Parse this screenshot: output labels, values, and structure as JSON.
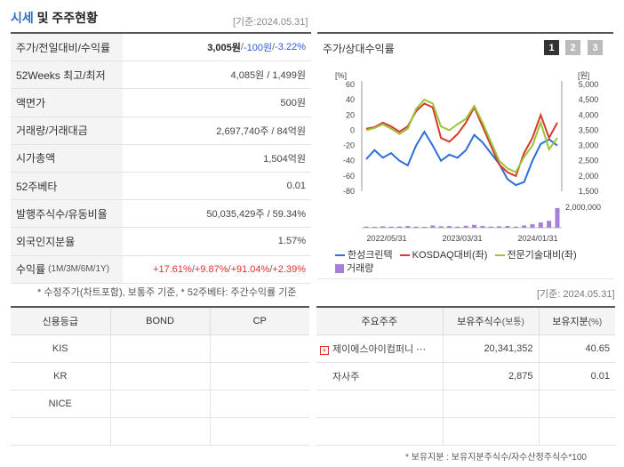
{
  "header": {
    "title_blue": "시세",
    "title_rest": " 및 주주현황",
    "date": "[기준:2024.05.31]"
  },
  "price_table": {
    "rows": [
      {
        "key": "주가/전일대비/수익률"
      },
      {
        "key": "52Weeks 최고/최저",
        "value": "4,085원 / 1,499원"
      },
      {
        "key": "액면가",
        "value": "500원"
      },
      {
        "key": "거래량/거래대금",
        "value": "2,697,740주 / 84억원"
      },
      {
        "key": "시가총액",
        "value": "1,504억원"
      },
      {
        "key": "52주베타",
        "value": "0.01"
      },
      {
        "key": "발행주식수/유동비율",
        "value": "50,035,429주 / 59.34%"
      },
      {
        "key": "외국인지분율",
        "value": "1.57%"
      },
      {
        "key": "수익률",
        "key_sub": "(1M/3M/6M/1Y)"
      }
    ],
    "price": "3,005원",
    "sep1": " / ",
    "change": "-100원",
    "sep2": " / ",
    "rate": "-3.22%",
    "returns": [
      "+17.61%",
      "+9.87%",
      "+91.04%",
      "+2.39%"
    ],
    "returns_sep": " / "
  },
  "note1": "* 수정주가(차트포함), 보통주 기준, * 52주베타: 주간수익률 기준",
  "chart_panel": {
    "title": "주가/상대수익률",
    "period_buttons": [
      "1",
      "2",
      "3"
    ],
    "legend": [
      {
        "name": "한성크린텍",
        "color": "#2f6fd6"
      },
      {
        "name": "KOSDAQ대비(좌)",
        "color": "#d6382b"
      },
      {
        "name": "전문기술대비(좌)",
        "color": "#9ac43a"
      },
      {
        "name": "거래량",
        "color": "#a57fd8"
      }
    ]
  },
  "chart_data": {
    "type": "line",
    "left_unit": "[%]",
    "right_unit": "[원]",
    "left_ticks": [
      "60",
      "40",
      "20",
      "0",
      "-20",
      "-40",
      "-60",
      "-80"
    ],
    "right_ticks": [
      "5,000",
      "4,500",
      "4,000",
      "3,500",
      "3,000",
      "2,500",
      "2,000",
      "1,500"
    ],
    "volume_tick": "2,000,000",
    "x_ticks": [
      "2022/05/31",
      "2023/03/31",
      "2024/01/31"
    ],
    "left_range": [
      -80,
      60
    ],
    "right_range": [
      1500,
      5000
    ],
    "series": [
      {
        "name": "한성크린텍",
        "axis": "right",
        "color": "#2f6fd6",
        "values": [
          2550,
          2850,
          2600,
          2750,
          2500,
          2350,
          3000,
          3450,
          3000,
          2500,
          2700,
          2600,
          2850,
          3350,
          3100,
          2750,
          2400,
          1900,
          1700,
          1800,
          2500,
          3050,
          3200,
          3000
        ]
      },
      {
        "name": "KOSDAQ대비(좌)",
        "axis": "left",
        "color": "#d6382b",
        "values": [
          2,
          4,
          10,
          5,
          -2,
          5,
          25,
          35,
          30,
          -10,
          -15,
          -5,
          10,
          30,
          5,
          -20,
          -45,
          -55,
          -60,
          -30,
          -10,
          20,
          -10,
          10
        ]
      },
      {
        "name": "전문기술대비(좌)",
        "axis": "left",
        "color": "#9ac43a",
        "values": [
          0,
          3,
          8,
          2,
          -5,
          2,
          28,
          40,
          35,
          5,
          0,
          8,
          15,
          32,
          10,
          -15,
          -40,
          -50,
          -55,
          -35,
          -20,
          10,
          -25,
          -10
        ]
      },
      {
        "name": "거래량",
        "axis": "volume",
        "color": "#a57fd8",
        "values": [
          200000,
          150000,
          250000,
          180000,
          220000,
          300000,
          200000,
          150000,
          400000,
          250000,
          300000,
          200000,
          350000,
          500000,
          300000,
          200000,
          250000,
          300000,
          200000,
          400000,
          600000,
          900000,
          1200000,
          3400000
        ]
      }
    ]
  },
  "date_mid": "[기준: 2024.05.31]",
  "credit_table": {
    "headers": [
      "신용등급",
      "BOND",
      "CP"
    ],
    "rows": [
      [
        "KIS",
        "",
        ""
      ],
      [
        "KR",
        "",
        ""
      ],
      [
        "NICE",
        "",
        ""
      ],
      [
        "",
        "",
        ""
      ]
    ]
  },
  "holder_table": {
    "headers": [
      "주요주주",
      "보유주식수",
      "(보통)",
      "보유지분",
      "(%)"
    ],
    "rows": [
      {
        "name": "제이에스아이컴퍼니 ⋯",
        "shares": "20,341,352",
        "pct": "40.65",
        "expandable": true
      },
      {
        "name": "자사주",
        "shares": "2,875",
        "pct": "0.01",
        "expandable": false
      },
      {
        "name": "",
        "shares": "",
        "pct": ""
      },
      {
        "name": "",
        "shares": "",
        "pct": ""
      }
    ]
  },
  "note2": "* 보유지분 : 보유지분주식수/자수산정주식수*100"
}
